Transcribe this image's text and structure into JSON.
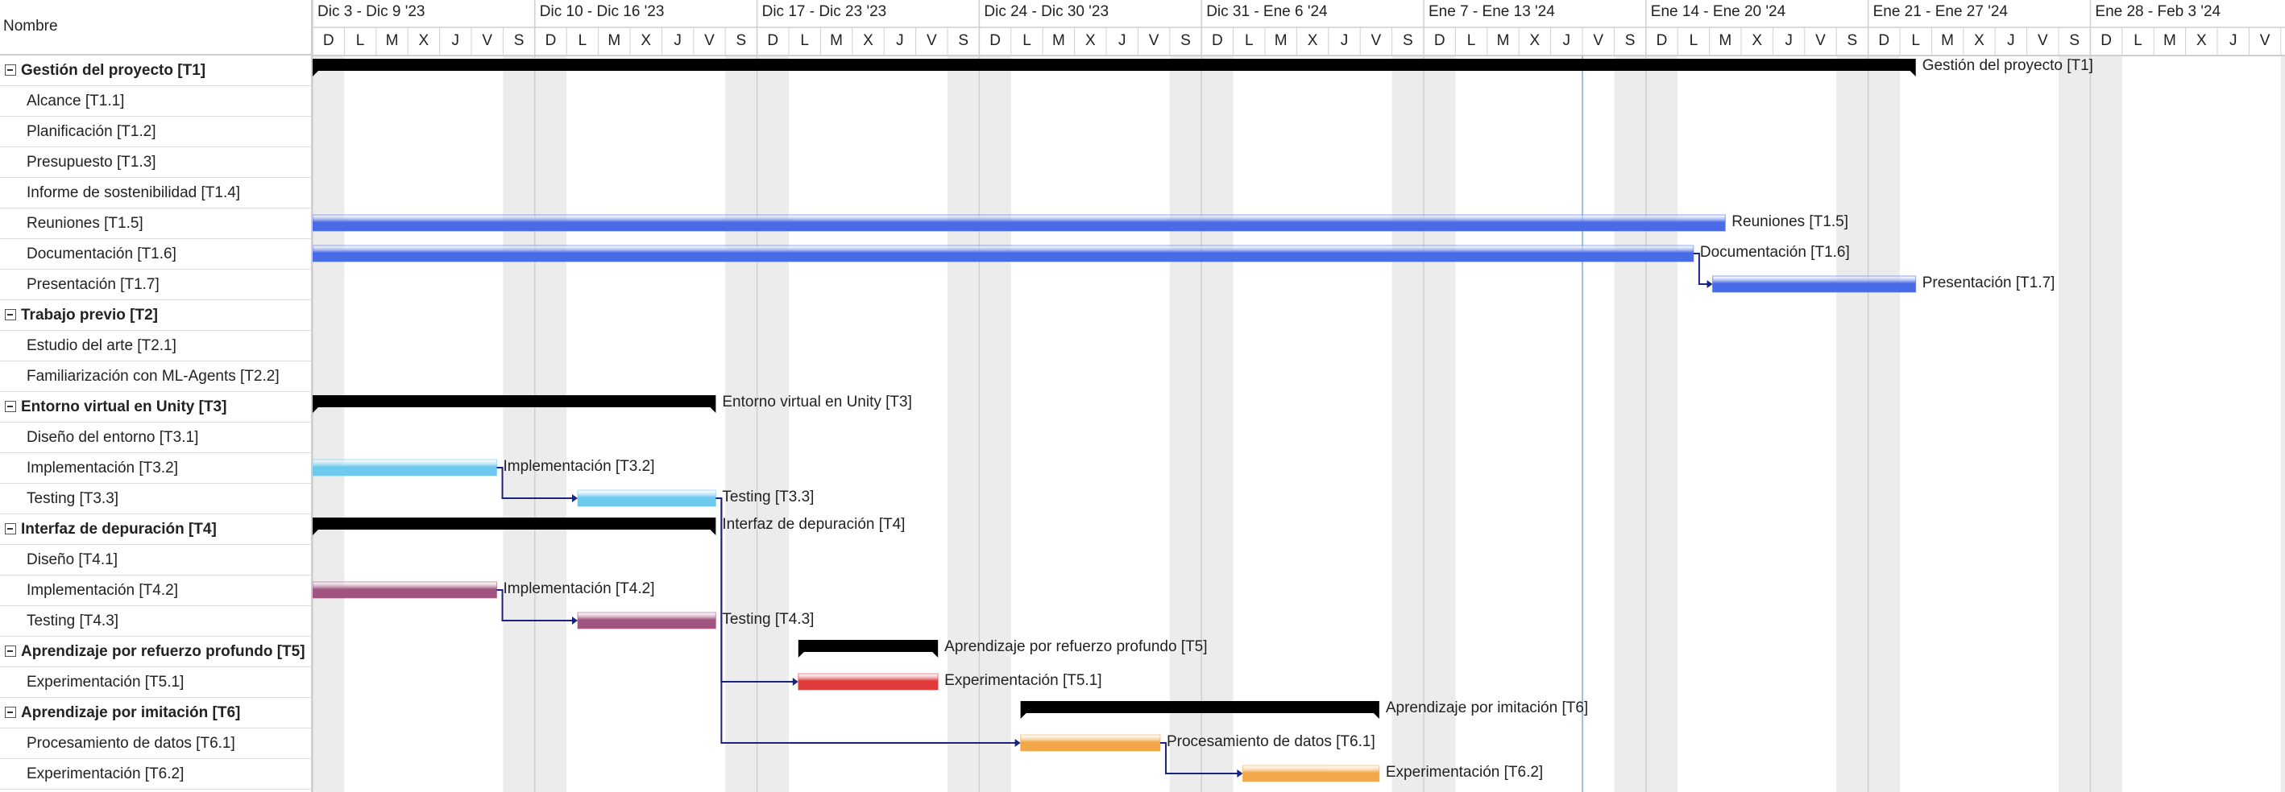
{
  "colors": {
    "summary": "#000000",
    "t1": "#4a6be6",
    "t3": "#6ec9ef",
    "t4": "#a0547f",
    "t5": "#e03a3a",
    "t6": "#f2a84a",
    "connector": "#1a237e",
    "weekend": "#ececec",
    "today_line": "#9fc4e0"
  },
  "header": {
    "name_column": "Nombre"
  },
  "weeks": [
    "Dic 3 - Dic 9 '23",
    "Dic 10 - Dic 16 '23",
    "Dic 17 - Dic 23 '23",
    "Dic 24 - Dic 30 '23",
    "Dic 31 - Ene 6 '24",
    "Ene 7 - Ene 13 '24",
    "Ene 14 - Ene 20 '24",
    "Ene 21 - Ene 27 '24",
    "Ene 28 - Feb 3 '24"
  ],
  "day_letters": [
    "D",
    "L",
    "M",
    "X",
    "J",
    "V",
    "S"
  ],
  "tasks": [
    {
      "label": "Gestión del proyecto [T1]",
      "parent": true
    },
    {
      "label": "Alcance [T1.1]",
      "parent": false
    },
    {
      "label": "Planificación [T1.2]",
      "parent": false
    },
    {
      "label": "Presupuesto [T1.3]",
      "parent": false
    },
    {
      "label": "Informe de sostenibilidad [T1.4]",
      "parent": false
    },
    {
      "label": "Reuniones [T1.5]",
      "parent": false
    },
    {
      "label": "Documentación [T1.6]",
      "parent": false
    },
    {
      "label": "Presentación [T1.7]",
      "parent": false
    },
    {
      "label": "Trabajo previo [T2]",
      "parent": true
    },
    {
      "label": "Estudio del arte [T2.1]",
      "parent": false
    },
    {
      "label": "Familiarización con ML-Agents [T2.2]",
      "parent": false
    },
    {
      "label": "Entorno virtual en Unity [T3]",
      "parent": true
    },
    {
      "label": "Diseño del entorno [T3.1]",
      "parent": false
    },
    {
      "label": "Implementación [T3.2]",
      "parent": false
    },
    {
      "label": "Testing [T3.3]",
      "parent": false
    },
    {
      "label": "Interfaz de depuración [T4]",
      "parent": true
    },
    {
      "label": "Diseño [T4.1]",
      "parent": false
    },
    {
      "label": "Implementación [T4.2]",
      "parent": false
    },
    {
      "label": "Testing [T4.3]",
      "parent": false
    },
    {
      "label": "Aprendizaje por refuerzo profundo [T5]",
      "parent": true
    },
    {
      "label": "Experimentación [T5.1]",
      "parent": false
    },
    {
      "label": "Aprendizaje por imitación [T6]",
      "parent": true
    },
    {
      "label": "Procesamiento de datos [T6.1]",
      "parent": false
    },
    {
      "label": "Experimentación [T6.2]",
      "parent": false
    }
  ],
  "bars": [
    {
      "row": 0,
      "start": 0,
      "end": 50.5,
      "summary": true,
      "color": "summary",
      "label": "Gestión del proyecto [T1]"
    },
    {
      "row": 5,
      "start": 0,
      "end": 44.5,
      "summary": false,
      "color": "t1",
      "label": "Reuniones [T1.5]"
    },
    {
      "row": 6,
      "start": 0,
      "end": 43.5,
      "summary": false,
      "color": "t1",
      "label": "Documentación [T1.6]"
    },
    {
      "row": 7,
      "start": 44.1,
      "end": 50.5,
      "summary": false,
      "color": "t1",
      "label": "Presentación [T1.7]"
    },
    {
      "row": 11,
      "start": 0,
      "end": 12.7,
      "summary": true,
      "color": "summary",
      "label": "Entorno virtual en Unity [T3]"
    },
    {
      "row": 13,
      "start": 0,
      "end": 5.8,
      "summary": false,
      "color": "t3",
      "label": "Implementación [T3.2]"
    },
    {
      "row": 14,
      "start": 8.35,
      "end": 12.7,
      "summary": false,
      "color": "t3",
      "label": "Testing [T3.3]"
    },
    {
      "row": 15,
      "start": 0,
      "end": 12.7,
      "summary": true,
      "color": "summary",
      "label": "Interfaz de depuración [T4]"
    },
    {
      "row": 17,
      "start": 0,
      "end": 5.8,
      "summary": false,
      "color": "t4",
      "label": "Implementación [T4.2]"
    },
    {
      "row": 18,
      "start": 8.35,
      "end": 12.7,
      "summary": false,
      "color": "t4",
      "label": "Testing [T4.3]"
    },
    {
      "row": 19,
      "start": 15.3,
      "end": 19.7,
      "summary": true,
      "color": "summary",
      "label": "Aprendizaje por refuerzo profundo [T5]"
    },
    {
      "row": 20,
      "start": 15.3,
      "end": 19.7,
      "summary": false,
      "color": "t5",
      "label": "Experimentación [T5.1]"
    },
    {
      "row": 21,
      "start": 22.3,
      "end": 33.6,
      "summary": true,
      "color": "summary",
      "label": "Aprendizaje por imitación [T6]"
    },
    {
      "row": 22,
      "start": 22.3,
      "end": 26.7,
      "summary": false,
      "color": "t6",
      "label": "Procesamiento de datos [T6.1]"
    },
    {
      "row": 23,
      "start": 29.3,
      "end": 33.6,
      "summary": false,
      "color": "t6",
      "label": "Experimentación [T6.2]"
    }
  ],
  "links": [
    {
      "from": 6,
      "to": 7
    },
    {
      "from": 13,
      "to": 14
    },
    {
      "from": 17,
      "to": 18
    },
    {
      "from": 14,
      "to": 20
    },
    {
      "from": 14,
      "to": 22
    },
    {
      "from": 22,
      "to": 23
    }
  ],
  "today_day": 40
}
